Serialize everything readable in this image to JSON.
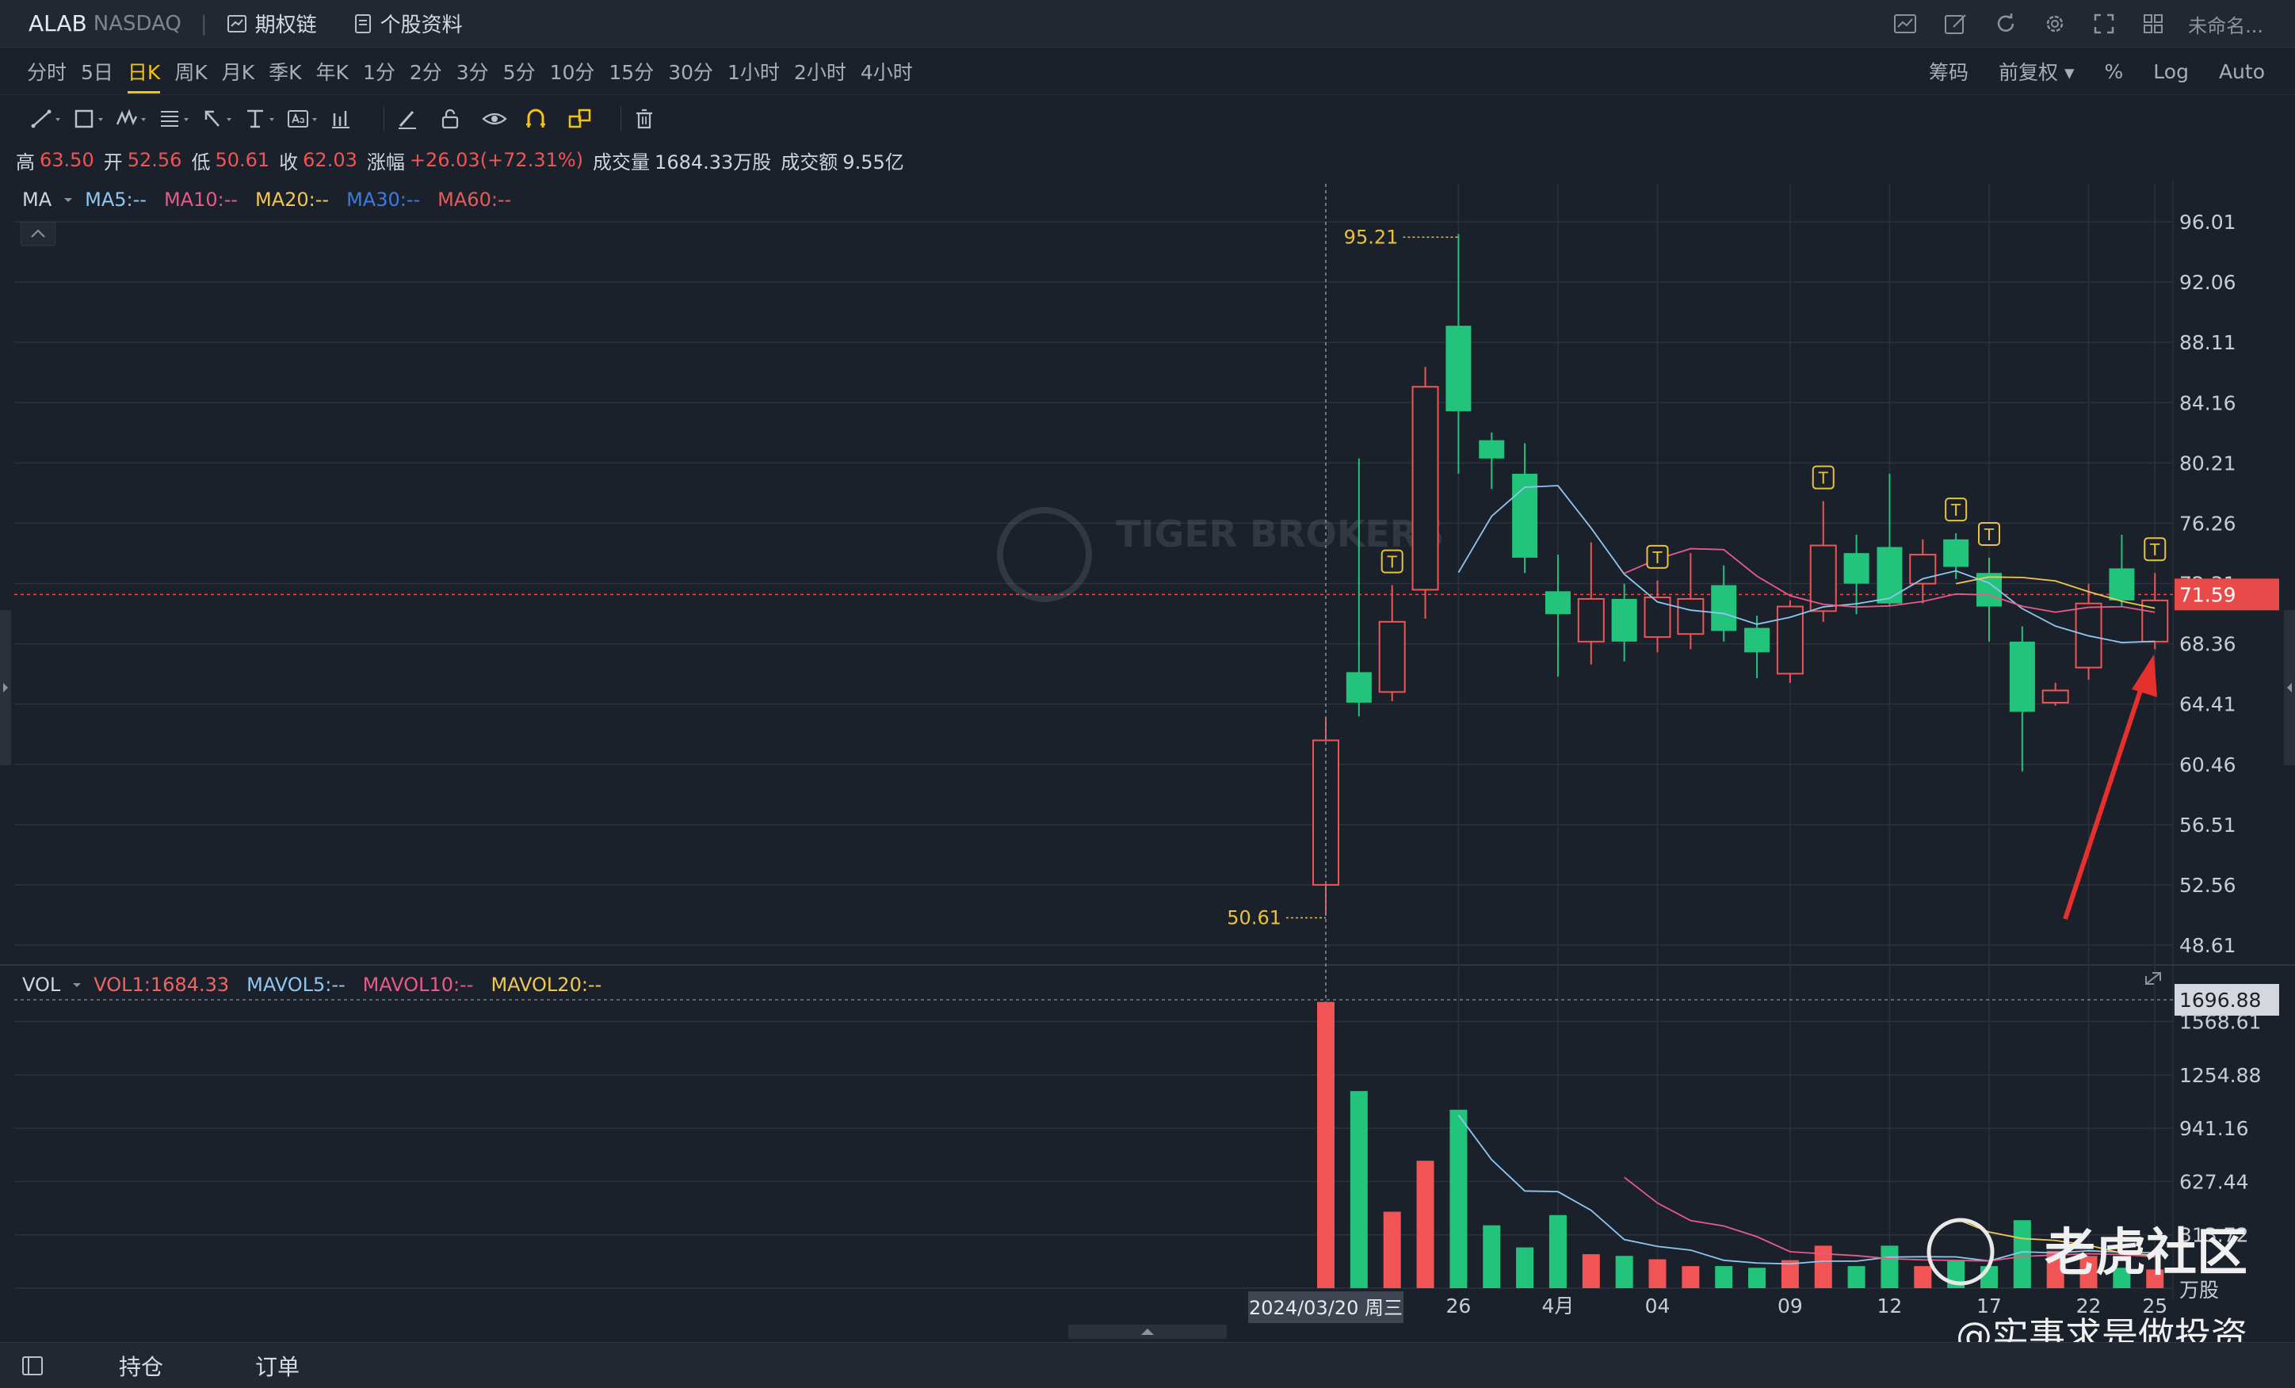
{
  "header": {
    "symbol": "ALAB",
    "exchange": "NASDAQ",
    "separator": "|",
    "options_chain": "期权链",
    "stock_profile": "个股资料",
    "user_label": "未命名..."
  },
  "periods": [
    "分时",
    "5日",
    "日K",
    "周K",
    "月K",
    "季K",
    "年K",
    "1分",
    "2分",
    "3分",
    "5分",
    "10分",
    "15分",
    "30分",
    "1小时",
    "2小时",
    "4小时"
  ],
  "active_period": "日K",
  "chart_options": [
    "筹码",
    "前复权 ▾",
    "%",
    "Log",
    "Auto"
  ],
  "ohlc": {
    "high_label": "高",
    "high": "63.50",
    "open_label": "开",
    "open": "52.56",
    "low_label": "低",
    "low": "50.61",
    "close_label": "收",
    "close": "62.03",
    "change_label": "涨幅",
    "change": "+26.03(+72.31%)",
    "volume_label": "成交量",
    "volume": "1684.33万股",
    "turnover_label": "成交额",
    "turnover": "9.55亿"
  },
  "ma_legend": {
    "title": "MA",
    "items": [
      {
        "label": "MA5:--",
        "color": "#8ec7f0"
      },
      {
        "label": "MA10:--",
        "color": "#e85a87"
      },
      {
        "label": "MA20:--",
        "color": "#f0c850"
      },
      {
        "label": "MA30:--",
        "color": "#3b7be0"
      },
      {
        "label": "MA60:--",
        "color": "#e85a5a"
      }
    ]
  },
  "vol_legend": {
    "title": "VOL",
    "items": [
      {
        "label": "VOL1:1684.33",
        "color": "#f06464"
      },
      {
        "label": "MAVOL5:--",
        "color": "#8ec7f0"
      },
      {
        "label": "MAVOL10:--",
        "color": "#e85a87"
      },
      {
        "label": "MAVOL20:--",
        "color": "#f0c850"
      }
    ]
  },
  "colors": {
    "up": "#f05454",
    "down": "#22c37a",
    "bg": "#1b212b",
    "grid": "#2b323d",
    "accent": "#f3c316",
    "current_price": "#e84a4a"
  },
  "chart_data": {
    "type": "candlestick",
    "price_axis": [
      "96.01",
      "92.06",
      "88.11",
      "84.16",
      "80.21",
      "76.26",
      "72.31",
      "68.36",
      "64.41",
      "60.46",
      "56.51",
      "52.56",
      "48.61"
    ],
    "price_range": [
      48.61,
      96.01
    ],
    "current_price": "71.59",
    "high_marker": "95.21",
    "low_marker": "50.61",
    "crosshair_date": "2024/03/20 周三",
    "x_labels": [
      "26",
      "4月",
      "04",
      "09",
      "12",
      "17",
      "22",
      "25"
    ],
    "candles": [
      {
        "o": 52.56,
        "c": 62.03,
        "h": 63.5,
        "l": 50.61
      },
      {
        "o": 66.5,
        "c": 64.5,
        "h": 80.5,
        "l": 63.6
      },
      {
        "o": 65.2,
        "c": 69.8,
        "h": 72.2,
        "l": 64.6
      },
      {
        "o": 71.9,
        "c": 85.2,
        "h": 86.5,
        "l": 70.0
      },
      {
        "o": 89.2,
        "c": 83.6,
        "h": 95.21,
        "l": 79.5
      },
      {
        "o": 81.7,
        "c": 80.5,
        "h": 82.2,
        "l": 78.5
      },
      {
        "o": 79.5,
        "c": 74.0,
        "h": 81.5,
        "l": 73.0
      },
      {
        "o": 71.8,
        "c": 70.3,
        "h": 74.2,
        "l": 66.2
      },
      {
        "o": 68.5,
        "c": 71.3,
        "h": 75.0,
        "l": 67.0
      },
      {
        "o": 71.3,
        "c": 68.5,
        "h": 72.3,
        "l": 67.2
      },
      {
        "o": 68.8,
        "c": 71.4,
        "h": 72.5,
        "l": 67.8
      },
      {
        "o": 69.0,
        "c": 71.3,
        "h": 74.3,
        "l": 68.0
      },
      {
        "o": 72.2,
        "c": 69.2,
        "h": 73.5,
        "l": 68.5
      },
      {
        "o": 69.4,
        "c": 67.8,
        "h": 70.2,
        "l": 66.1
      },
      {
        "o": 66.4,
        "c": 70.8,
        "h": 71.2,
        "l": 65.8
      },
      {
        "o": 70.5,
        "c": 74.8,
        "h": 77.7,
        "l": 69.8
      },
      {
        "o": 74.3,
        "c": 72.3,
        "h": 75.5,
        "l": 70.3
      },
      {
        "o": 74.7,
        "c": 71.0,
        "h": 79.5,
        "l": 70.8
      },
      {
        "o": 72.3,
        "c": 74.2,
        "h": 75.2,
        "l": 71.0
      },
      {
        "o": 75.2,
        "c": 73.4,
        "h": 75.6,
        "l": 72.6
      },
      {
        "o": 73.0,
        "c": 70.8,
        "h": 74.0,
        "l": 68.5
      },
      {
        "o": 68.5,
        "c": 63.9,
        "h": 69.5,
        "l": 60.0
      },
      {
        "o": 64.5,
        "c": 65.3,
        "h": 65.8,
        "l": 64.3
      },
      {
        "o": 66.8,
        "c": 71.0,
        "h": 72.3,
        "l": 66.0
      },
      {
        "o": 73.3,
        "c": 71.2,
        "h": 75.5,
        "l": 70.8
      },
      {
        "o": 68.5,
        "c": 71.2,
        "h": 73.0,
        "l": 68.0
      }
    ],
    "volume_axis": [
      "1696.88",
      "1568.61",
      "1254.88",
      "941.16",
      "627.44",
      "313.72"
    ],
    "volume_unit": "万股",
    "volume_range": [
      0,
      1696.88
    ],
    "volumes": [
      1684.33,
      1160,
      450,
      750,
      1050,
      370,
      240,
      430,
      200,
      190,
      170,
      130,
      130,
      120,
      165,
      250,
      130,
      250,
      130,
      160,
      130,
      400,
      220,
      190,
      120,
      110
    ],
    "t_markers": [
      2,
      10,
      15,
      19,
      20,
      25
    ]
  },
  "bottom": {
    "positions": "持仓",
    "orders": "订单"
  },
  "watermark": {
    "logo_text": "TIGER BROKERS",
    "community": "老虎社区",
    "author": "@实事求是做投资"
  }
}
